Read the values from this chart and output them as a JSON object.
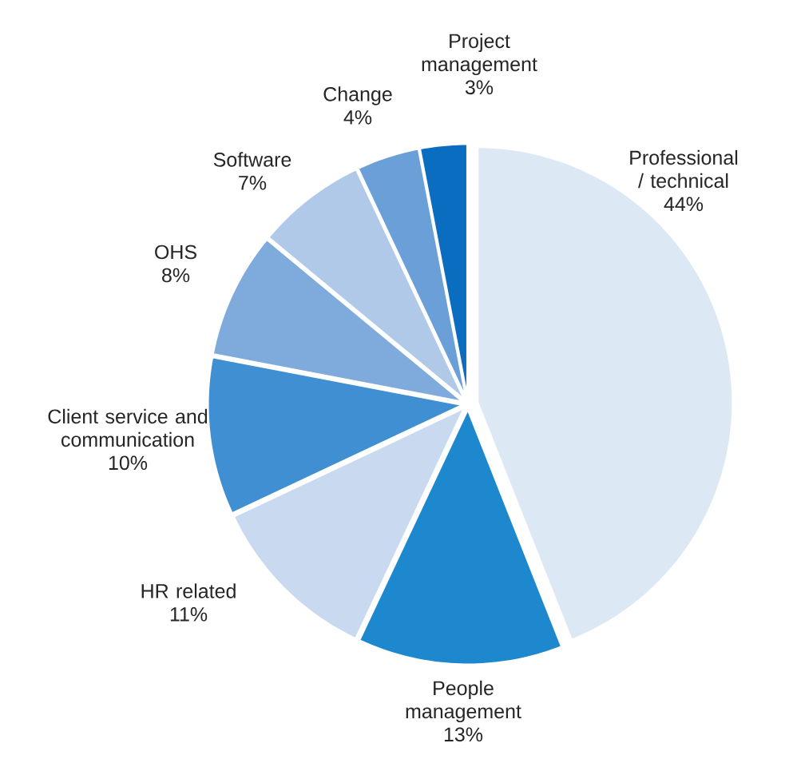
{
  "chart_data": {
    "type": "pie",
    "categories": [
      "Professional / technical",
      "People management",
      "HR related",
      "Client service and communication",
      "OHS",
      "Software",
      "Change",
      "Project management"
    ],
    "values": [
      44,
      13,
      11,
      10,
      8,
      7,
      4,
      3
    ],
    "value_labels": [
      "44%",
      "13%",
      "11%",
      "10%",
      "8%",
      "7%",
      "4%",
      "3%"
    ],
    "colors": [
      "#dde8f5",
      "#1e88cf",
      "#c9d9ef",
      "#3f8fd2",
      "#7eaadc",
      "#b1c9e9",
      "#6a9fd8",
      "#0b6dbf"
    ]
  }
}
